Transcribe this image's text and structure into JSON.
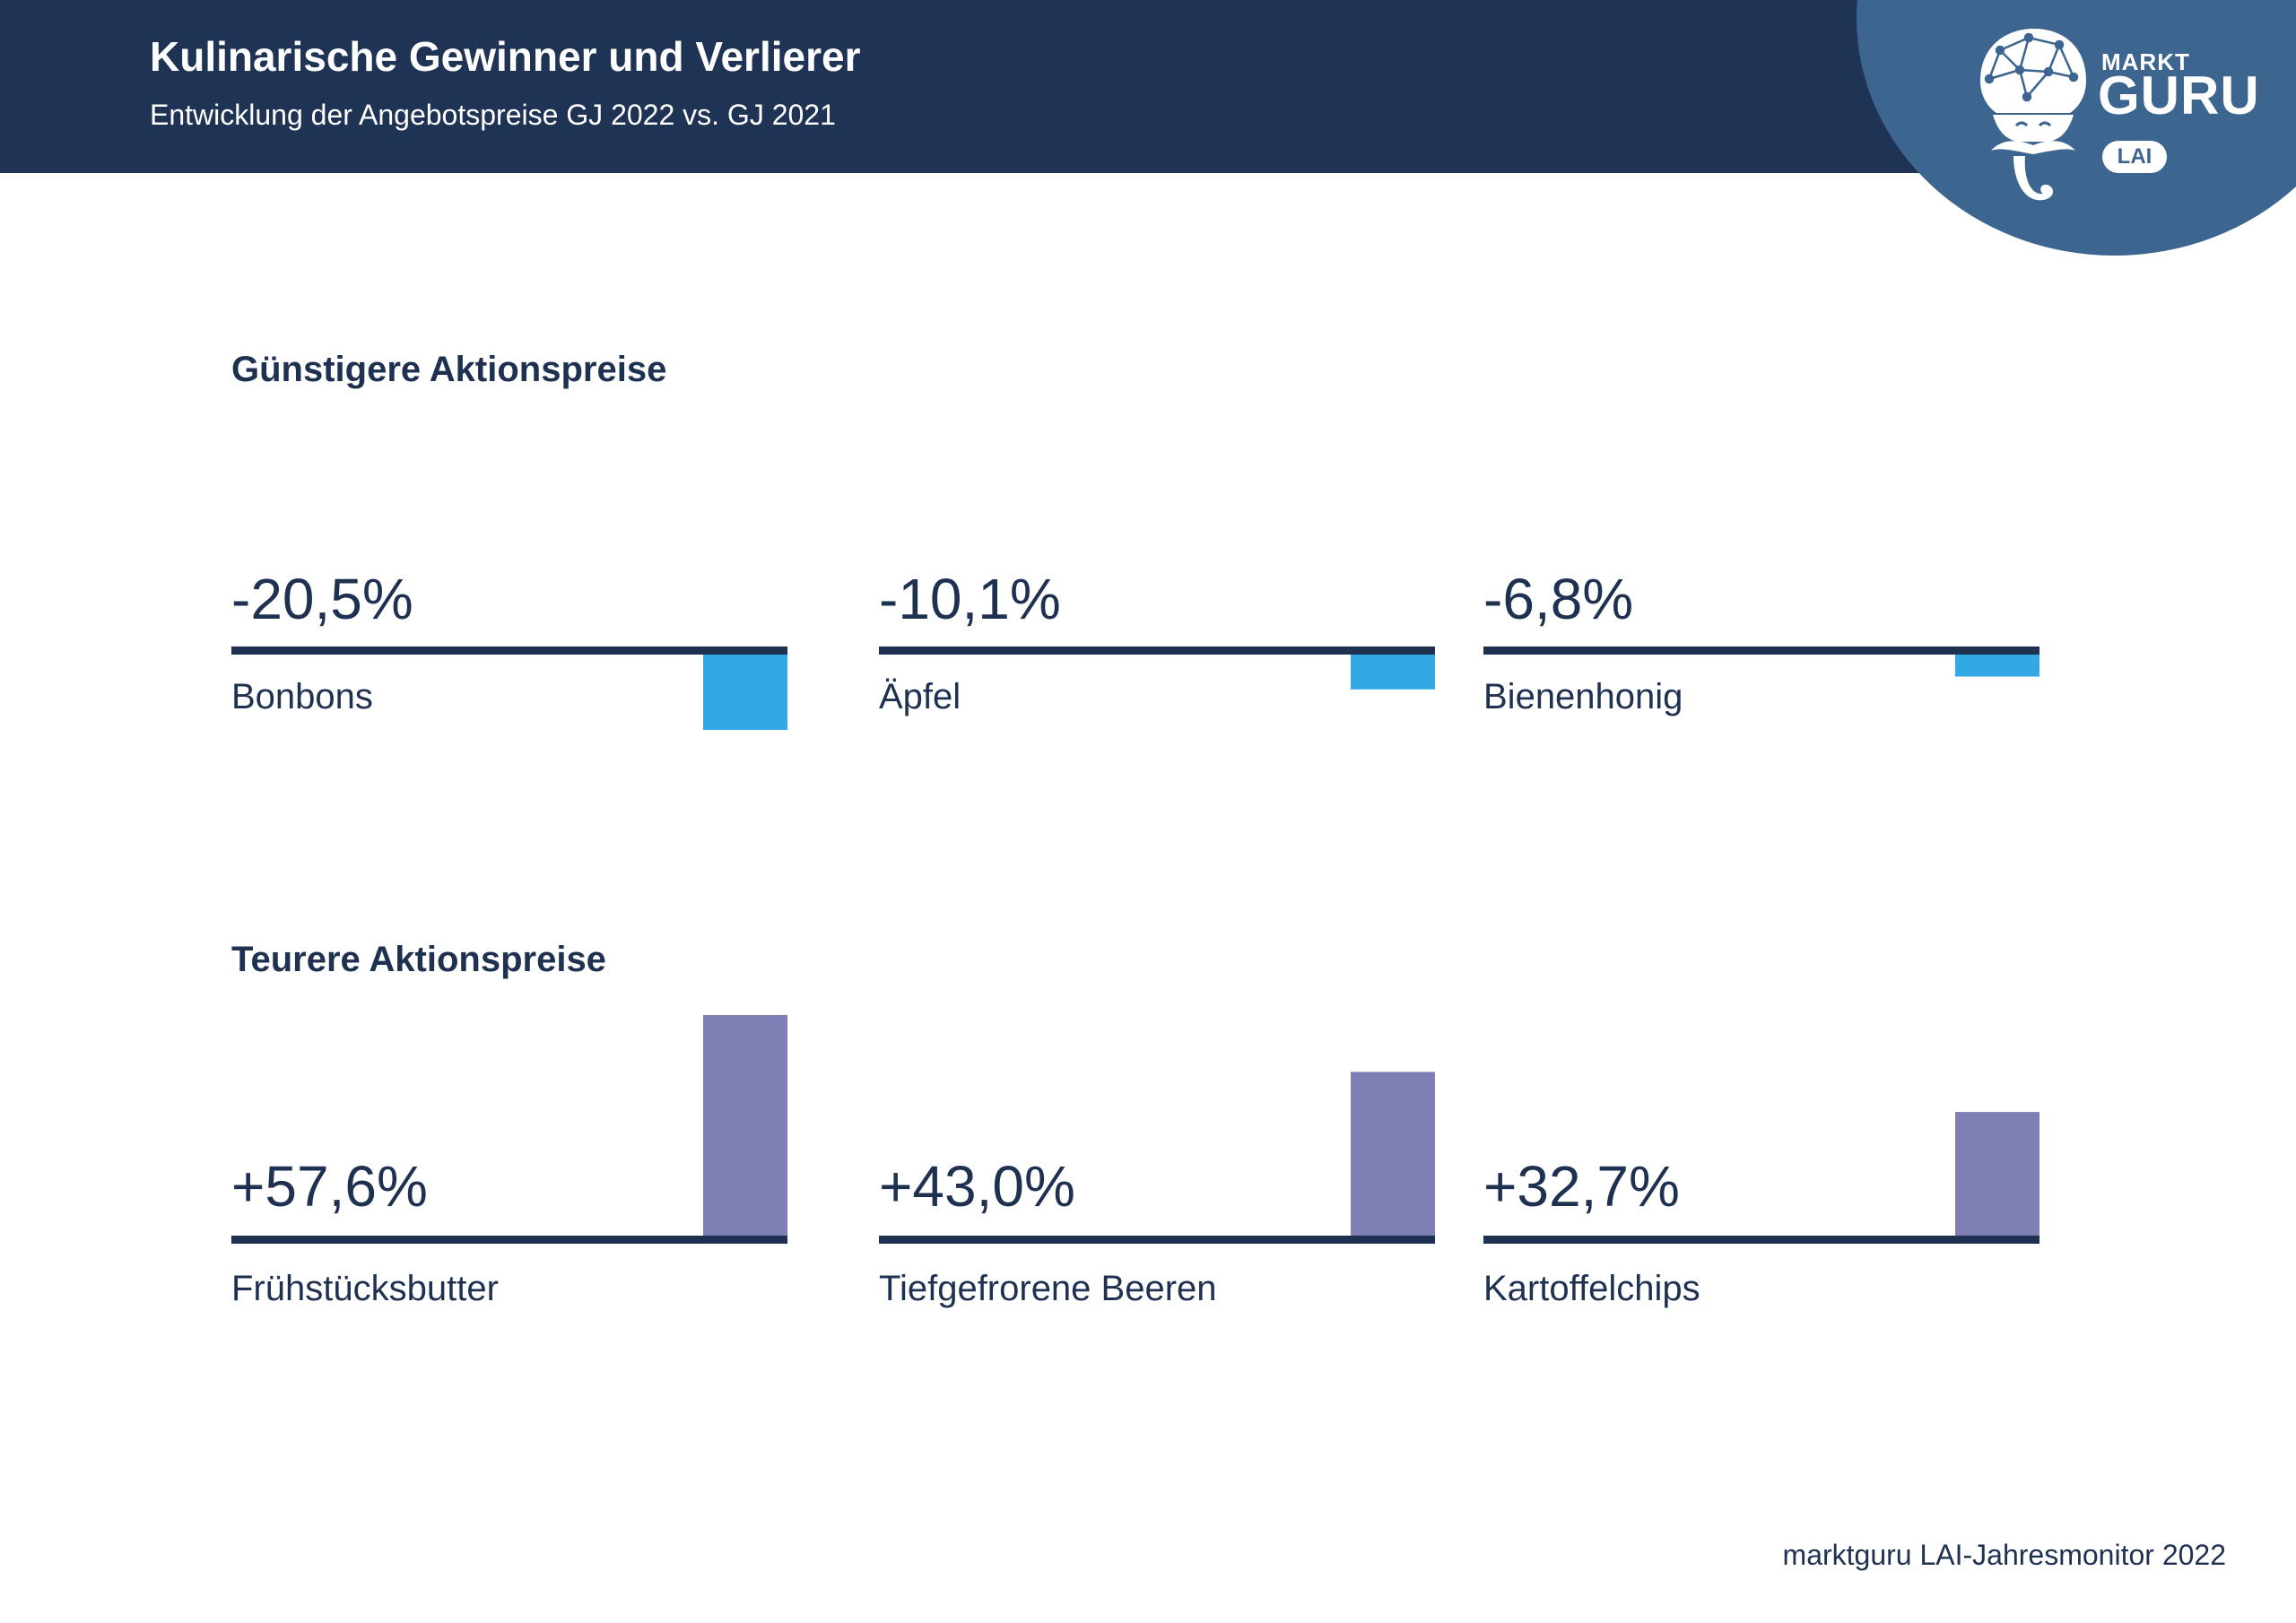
{
  "header": {
    "title": "Kulinarische Gewinner und Verlierer",
    "subtitle": "Entwicklung der Angebotspreise GJ 2022 vs. GJ 2021"
  },
  "logo": {
    "markt": "MARKT",
    "guru": "GURU",
    "lai": "LAI",
    "icon": "guru-face-icon"
  },
  "colors": {
    "header_bg": "#1f3354",
    "logo_bg": "#3c6590",
    "negative_bar": "#33a9e4",
    "positive_bar": "#7f7fb6",
    "baseline": "#1f3150"
  },
  "chart_data": {
    "type": "bar",
    "groups": [
      {
        "title": "Günstigere Aktionspreise",
        "items": [
          {
            "label": "Bonbons",
            "value": -20.5,
            "value_label": "-20,5%"
          },
          {
            "label": "Äpfel",
            "value": -10.1,
            "value_label": "-10,1%"
          },
          {
            "label": "Bienenhonig",
            "value": -6.8,
            "value_label": "-6,8%"
          }
        ]
      },
      {
        "title": "Teurere Aktionspreise",
        "items": [
          {
            "label": "Frühstücksbutter",
            "value": 57.6,
            "value_label": "+57,6%"
          },
          {
            "label": "Tiefgefrorene Beeren",
            "value": 43.0,
            "value_label": "+43,0%"
          },
          {
            "label": "Kartoffelchips",
            "value": 32.7,
            "value_label": "+32,7%"
          }
        ]
      }
    ]
  },
  "footer": {
    "source": "marktguru LAI-Jahresmonitor 2022"
  }
}
